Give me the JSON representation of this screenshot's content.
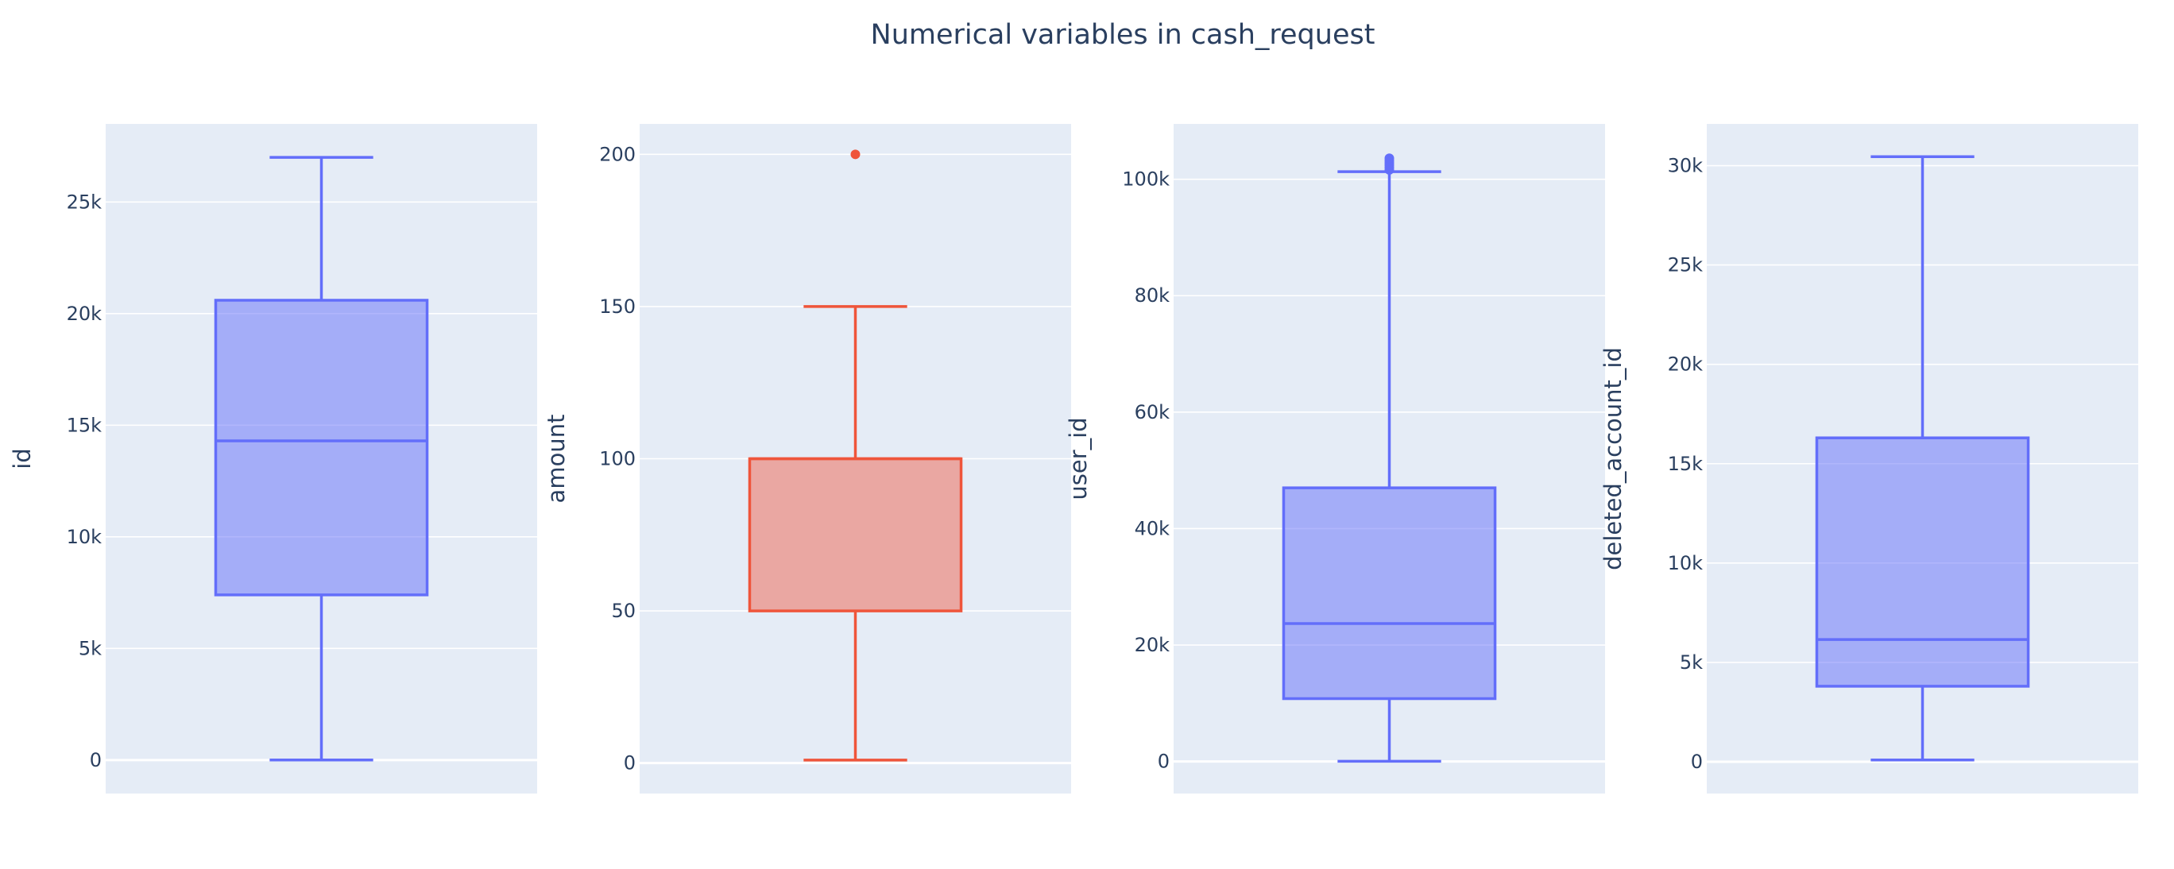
{
  "title": "Numerical variables in cash_request",
  "colors": {
    "plot_bg": "#e5ecf6",
    "grid": "#ffffff",
    "text": "#2a3f5f",
    "blue_line": "#636efa",
    "blue_fill": "rgba(99,110,250,0.5)",
    "red_line": "#ef553b",
    "red_fill": "rgba(239,85,59,0.45)"
  },
  "chart_data": [
    {
      "type": "box",
      "ylabel": "id",
      "ylim": [
        -1500,
        28500
      ],
      "yticks": [
        {
          "v": 0,
          "label": "0"
        },
        {
          "v": 5000,
          "label": "5k"
        },
        {
          "v": 10000,
          "label": "10k"
        },
        {
          "v": 15000,
          "label": "15k"
        },
        {
          "v": 20000,
          "label": "20k"
        },
        {
          "v": 25000,
          "label": "25k"
        }
      ],
      "box": {
        "lower_fence": 3,
        "q1": 7400,
        "median": 14300,
        "q3": 20600,
        "upper_fence": 27000
      },
      "outliers": [],
      "color": "blue"
    },
    {
      "type": "box",
      "ylabel": "amount",
      "ylim": [
        -10,
        210
      ],
      "yticks": [
        {
          "v": 0,
          "label": "0"
        },
        {
          "v": 50,
          "label": "50"
        },
        {
          "v": 100,
          "label": "100"
        },
        {
          "v": 150,
          "label": "150"
        },
        {
          "v": 200,
          "label": "200"
        }
      ],
      "box": {
        "lower_fence": 1,
        "q1": 50,
        "median": 100,
        "q3": 100,
        "upper_fence": 150
      },
      "outliers": [
        200
      ],
      "color": "red"
    },
    {
      "type": "box",
      "ylabel": "user_id",
      "ylim": [
        -5500,
        109500
      ],
      "yticks": [
        {
          "v": 0,
          "label": "0"
        },
        {
          "v": 20000,
          "label": "20k"
        },
        {
          "v": 40000,
          "label": "40k"
        },
        {
          "v": 60000,
          "label": "60k"
        },
        {
          "v": 80000,
          "label": "80k"
        },
        {
          "v": 100000,
          "label": "100k"
        }
      ],
      "box": {
        "lower_fence": 34,
        "q1": 10800,
        "median": 23700,
        "q3": 47000,
        "upper_fence": 101300
      },
      "outliers": [
        101600,
        102000,
        102400,
        102800,
        103200,
        103600
      ],
      "color": "blue"
    },
    {
      "type": "box",
      "ylabel": "deleted_account_id",
      "ylim": [
        -1600,
        32100
      ],
      "yticks": [
        {
          "v": 0,
          "label": "0"
        },
        {
          "v": 5000,
          "label": "5k"
        },
        {
          "v": 10000,
          "label": "10k"
        },
        {
          "v": 15000,
          "label": "15k"
        },
        {
          "v": 20000,
          "label": "20k"
        },
        {
          "v": 25000,
          "label": "25k"
        },
        {
          "v": 30000,
          "label": "30k"
        }
      ],
      "box": {
        "lower_fence": 91,
        "q1": 3800,
        "median": 6150,
        "q3": 16300,
        "upper_fence": 30450
      },
      "outliers": [],
      "color": "blue"
    }
  ]
}
